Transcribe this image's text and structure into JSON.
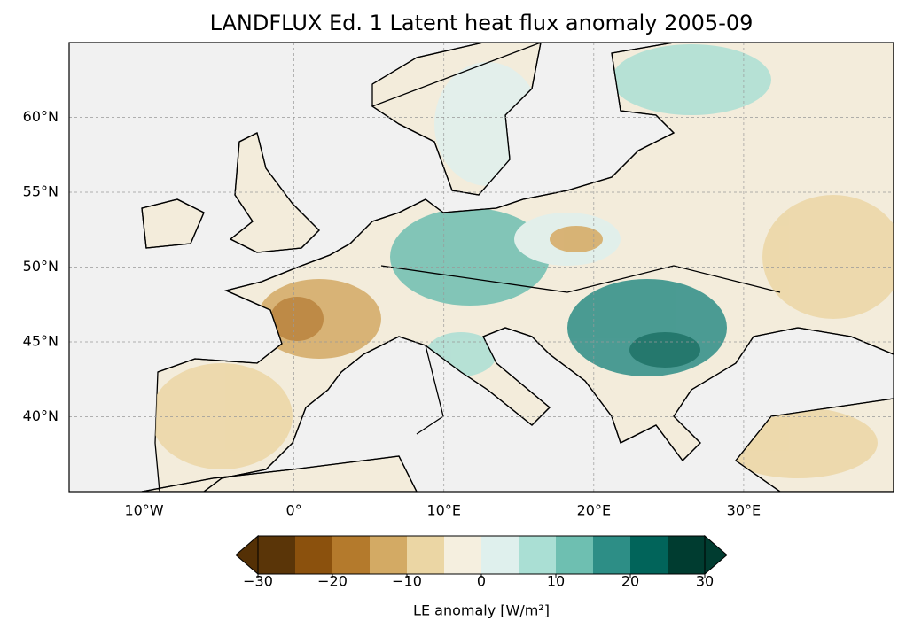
{
  "title": "LANDFLUX Ed. 1 Latent heat flux anomaly 2005-09",
  "map": {
    "lonlim": [
      -15,
      40
    ],
    "latlim": [
      35,
      65
    ],
    "grid": true,
    "lonticks": [
      {
        "value": -10,
        "label": "10°W"
      },
      {
        "value": 0,
        "label": "0°"
      },
      {
        "value": 10,
        "label": "10°E"
      },
      {
        "value": 20,
        "label": "20°E"
      },
      {
        "value": 30,
        "label": "30°E"
      }
    ],
    "latticks": [
      {
        "value": 40,
        "label": "40°N"
      },
      {
        "value": 45,
        "label": "45°N"
      },
      {
        "value": 50,
        "label": "50°N"
      },
      {
        "value": 55,
        "label": "55°N"
      },
      {
        "value": 60,
        "label": "60°N"
      }
    ]
  },
  "colorbar": {
    "label": "LE anomaly [W/m²]",
    "levels": [
      -30,
      -25,
      -20,
      -15,
      -10,
      -5,
      0,
      5,
      10,
      15,
      20,
      25,
      30
    ],
    "colors": [
      "#5a3508",
      "#8b510d",
      "#b47a2c",
      "#d3aa64",
      "#ebd6a4",
      "#f5efdf",
      "#dff0ed",
      "#aadfd4",
      "#6ebfb1",
      "#2d8e86",
      "#01645a",
      "#003c30"
    ],
    "under_color": "#543005",
    "over_color": "#003c30",
    "ticks": [
      {
        "value": -30,
        "label": "−30"
      },
      {
        "value": -20,
        "label": "−20"
      },
      {
        "value": -10,
        "label": "−10"
      },
      0,
      10,
      20,
      30
    ]
  }
}
